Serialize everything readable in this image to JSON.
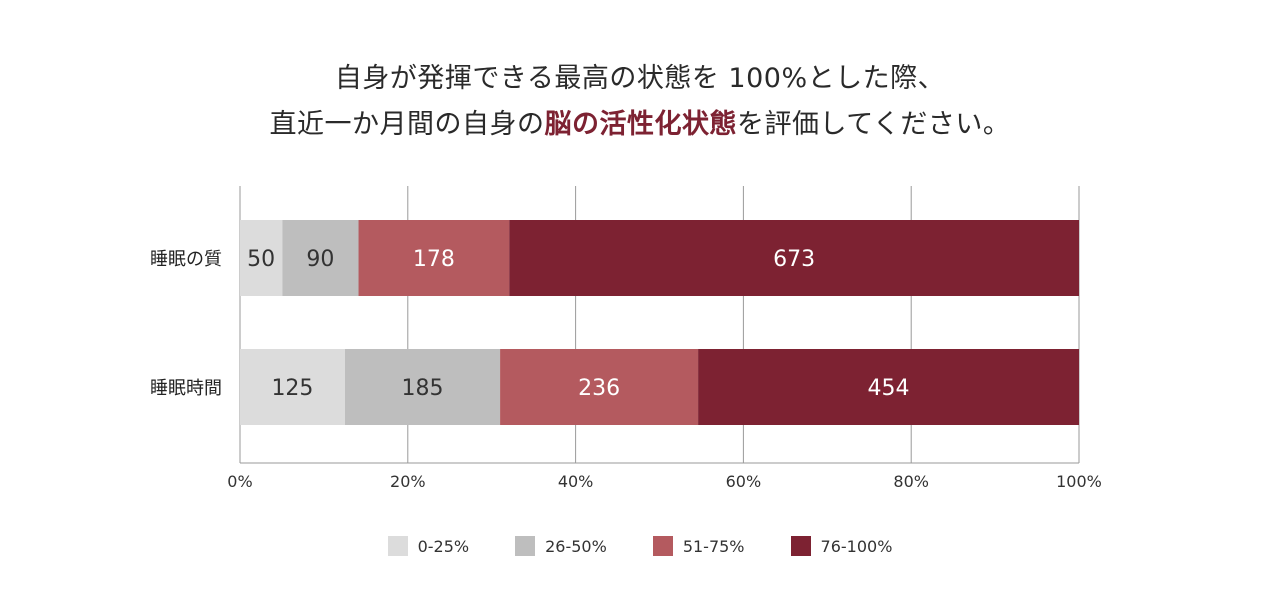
{
  "title": {
    "line1": "自身が発揮できる最高の状態を 100%とした際、",
    "line2_prefix": "直近一か月間の自身の",
    "line2_highlight": "脳の活性化状態",
    "line2_suffix": "を評価してください。"
  },
  "colors": {
    "c0_25": "#dcdcdc",
    "c26_50": "#bebebe",
    "c51_75": "#b45a5f",
    "c76_100": "#7d2232",
    "highlight": "#7d2232"
  },
  "chart_data": {
    "type": "bar",
    "orientation": "horizontal",
    "stacked": true,
    "normalized": true,
    "categories": [
      "睡眠の質",
      "睡眠時間"
    ],
    "series": [
      {
        "name": "0-25%",
        "values": [
          50,
          125
        ]
      },
      {
        "name": "26-50%",
        "values": [
          90,
          185
        ]
      },
      {
        "name": "51-75%",
        "values": [
          178,
          236
        ]
      },
      {
        "name": "76-100%",
        "values": [
          673,
          454
        ]
      }
    ],
    "x_ticks": [
      "0%",
      "20%",
      "40%",
      "60%",
      "80%",
      "100%"
    ],
    "xlim": [
      0,
      100
    ],
    "grid": "vertical",
    "legend_position": "bottom"
  }
}
